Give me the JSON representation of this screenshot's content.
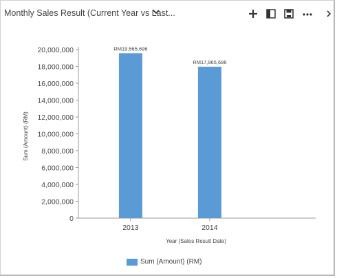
{
  "header": {
    "title": "Monthly Sales Result (Current Year vs Last...",
    "toolbar": {
      "add_icon": "plus-icon",
      "expand_icon": "expand-panel-icon",
      "save_icon": "save-icon",
      "more_icon": "more-icon",
      "next_icon": "chevron-right-icon"
    }
  },
  "chart_data": {
    "type": "bar",
    "categories": [
      "2013",
      "2014"
    ],
    "series": [
      {
        "name": "Sum (Amount) (RM)",
        "values": [
          19565696,
          17965696
        ],
        "data_labels": [
          "RM19,565,696",
          "RM17,965,696"
        ],
        "color": "#5b9bd5"
      }
    ],
    "ylim": [
      0,
      20000000
    ],
    "yticks": [
      0,
      2000000,
      4000000,
      6000000,
      8000000,
      10000000,
      12000000,
      14000000,
      16000000,
      18000000,
      20000000
    ],
    "ytick_labels": [
      "0",
      "2,000,000",
      "4,000,000",
      "6,000,000",
      "8,000,000",
      "10,000,000",
      "12,000,000",
      "14,000,000",
      "16,000,000",
      "18,000,000",
      "20,000,000"
    ],
    "xlabel": "Year (Sales Result Date)",
    "ylabel": "Sum (Amount) (RM)",
    "grid": false,
    "legend_position": "bottom"
  }
}
